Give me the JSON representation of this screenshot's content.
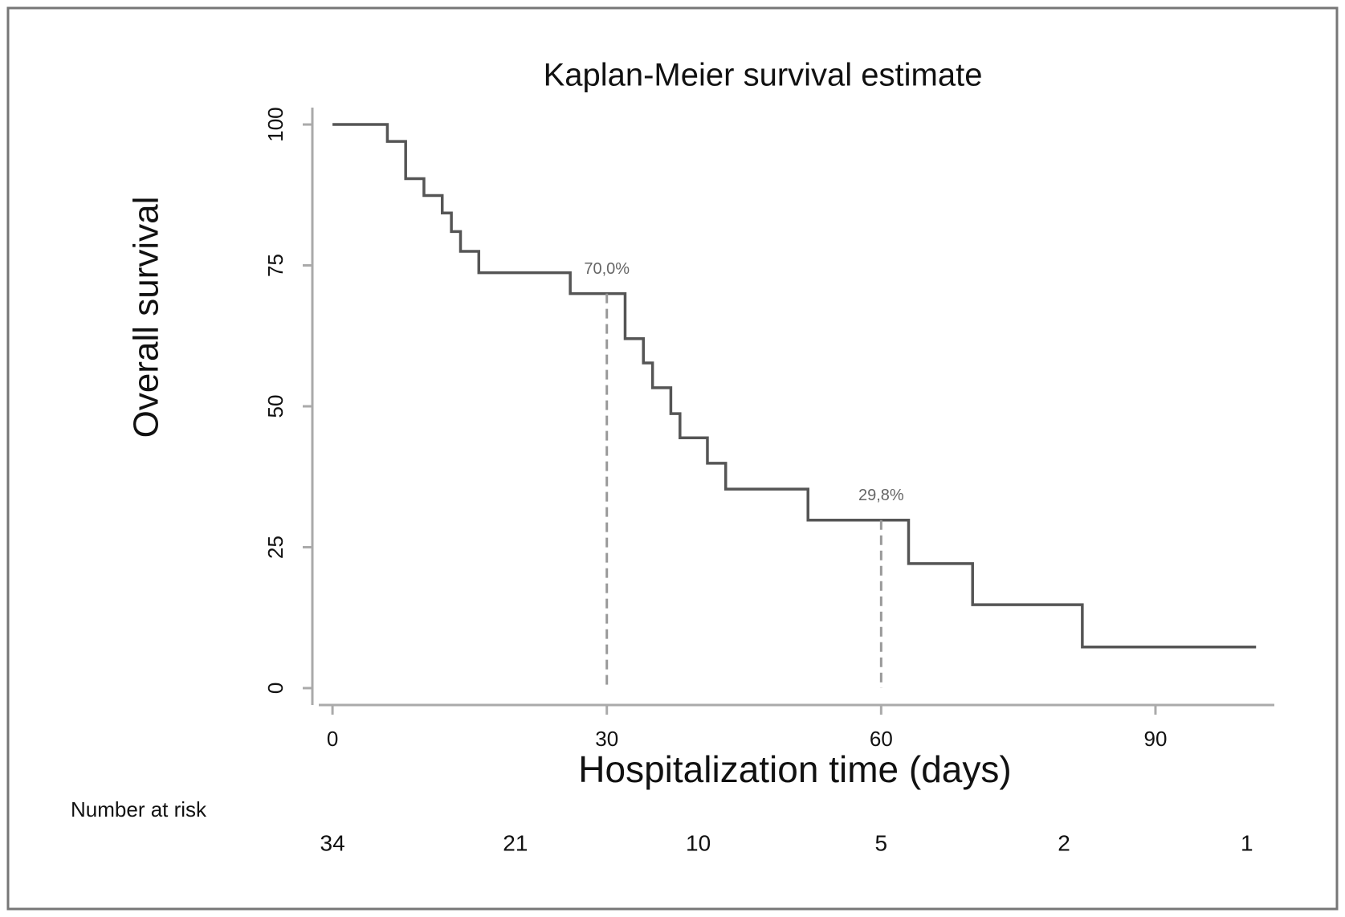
{
  "chart_data": {
    "type": "step",
    "title": "Kaplan-Meier survival estimate",
    "x_label": "Hospitalization time (days)",
    "y_label": "Overall survival",
    "x": [
      0,
      6,
      8,
      10,
      12,
      13,
      14,
      16,
      26,
      32,
      34,
      35,
      37,
      38,
      41,
      43,
      52,
      63,
      70,
      82,
      101
    ],
    "series": [
      {
        "name": "Overall survival",
        "color": "#555555",
        "values": [
          100,
          97,
          90.4,
          87.4,
          84.3,
          81,
          77.5,
          73.7,
          70,
          62,
          57.7,
          53.3,
          48.7,
          44.4,
          39.9,
          35.3,
          29.8,
          22.1,
          14.8,
          7.3,
          7.3
        ]
      }
    ],
    "xlim": [
      -1.5,
      103
    ],
    "ylim": [
      -3,
      103
    ],
    "xticks": [
      0,
      30,
      60,
      90
    ],
    "yticks": [
      0,
      25,
      50,
      75,
      100
    ],
    "annotations": [
      {
        "x": 30,
        "value": 70,
        "label": "70,0%"
      },
      {
        "x": 60,
        "value": 29.8,
        "label": "29,8%"
      }
    ],
    "risk_table": {
      "label": "Number at risk",
      "times": [
        0,
        20,
        40,
        60,
        80,
        100
      ],
      "counts": [
        34,
        21,
        10,
        5,
        2,
        1
      ]
    }
  }
}
